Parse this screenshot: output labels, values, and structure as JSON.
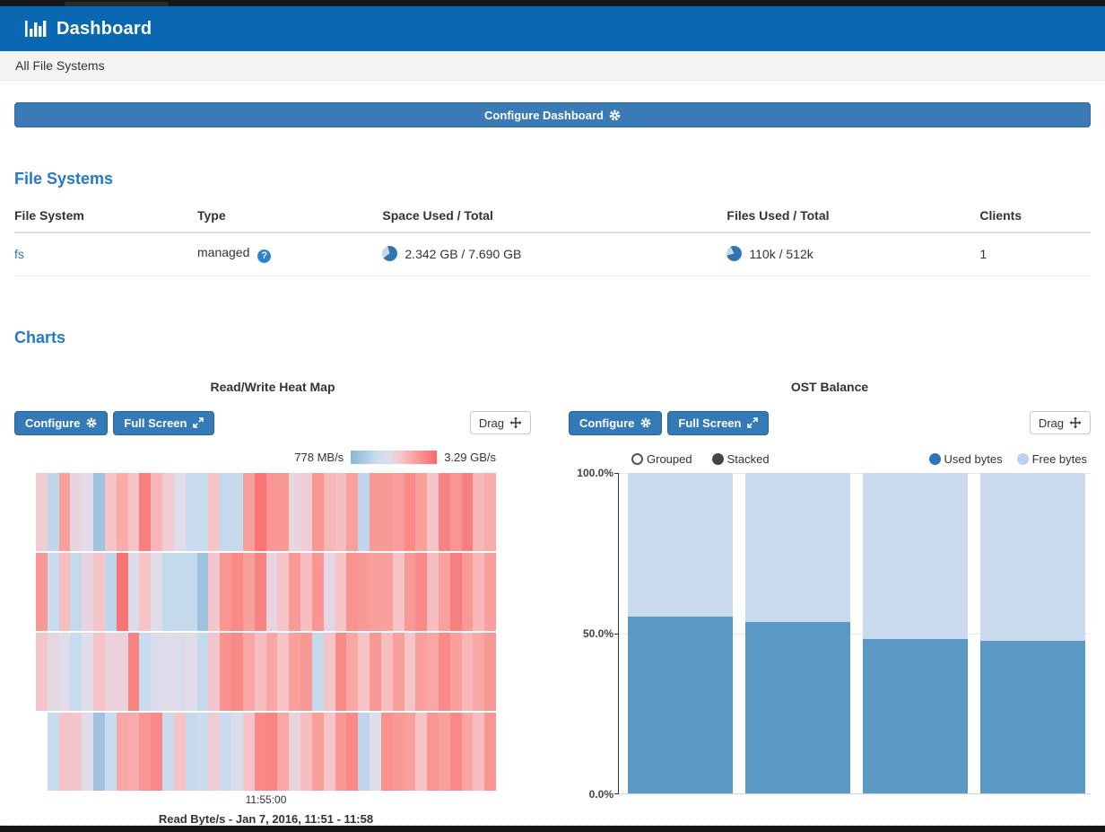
{
  "header": {
    "title": "Dashboard"
  },
  "breadcrumb": "All File Systems",
  "configure_dashboard_label": "Configure Dashboard",
  "file_systems": {
    "heading": "File Systems",
    "columns": [
      "File System",
      "Type",
      "Space Used / Total",
      "Files Used / Total",
      "Clients"
    ],
    "rows": [
      {
        "name": "fs",
        "type": "managed",
        "space": "2.342 GB / 7.690 GB",
        "files": "110k / 512k",
        "clients": "1"
      }
    ]
  },
  "charts_heading": "Charts",
  "heatmap_panel": {
    "title": "Read/Write Heat Map",
    "configure_label": "Configure",
    "fullscreen_label": "Full Screen",
    "drag_label": "Drag"
  },
  "ost_panel": {
    "title": "OST Balance",
    "configure_label": "Configure",
    "fullscreen_label": "Full Screen",
    "drag_label": "Drag",
    "grouped_label": "Grouped",
    "stacked_label": "Stacked",
    "used_label": "Used bytes",
    "free_label": "Free bytes",
    "legend_used_color": "#2b74b8",
    "legend_free_color": "#bdd2ee"
  },
  "chart_data": [
    {
      "type": "heatmap",
      "title": "Read/Write Heat Map",
      "legend_min": "778 MB/s",
      "legend_max": "3.29 GB/s",
      "x_tick": "11:55:00",
      "caption": "Read Byte/s - Jan 7, 2016, 11:51 - 11:58",
      "palette_stops": [
        [
          0.0,
          "#89b7d9"
        ],
        [
          0.3,
          "#c9dbee"
        ],
        [
          0.45,
          "#e0dcea"
        ],
        [
          0.6,
          "#f6c3c6"
        ],
        [
          0.75,
          "#f9a09c"
        ],
        [
          1.0,
          "#f8696b"
        ]
      ],
      "rows": [
        [
          0.55,
          0.25,
          0.75,
          0.5,
          0.45,
          0.1,
          0.6,
          0.7,
          0.6,
          0.9,
          0.65,
          0.55,
          0.45,
          0.3,
          0.3,
          0.6,
          0.28,
          0.28,
          0.75,
          0.95,
          0.8,
          0.78,
          0.5,
          0.55,
          0.8,
          0.65,
          0.62,
          0.75,
          0.25,
          0.78,
          0.78,
          0.76,
          0.85,
          0.75,
          0.6,
          0.88,
          0.8,
          0.9,
          0.65,
          0.7
        ],
        [
          0.78,
          0.3,
          0.62,
          0.28,
          0.5,
          0.6,
          0.25,
          0.95,
          0.42,
          0.6,
          0.45,
          0.28,
          0.28,
          0.28,
          0.1,
          0.58,
          0.8,
          0.85,
          0.75,
          0.88,
          0.5,
          0.6,
          0.78,
          0.62,
          0.8,
          0.48,
          0.6,
          0.82,
          0.78,
          0.75,
          0.75,
          0.6,
          0.78,
          0.85,
          0.62,
          0.75,
          0.9,
          0.78,
          0.65,
          0.75
        ],
        [
          0.58,
          0.48,
          0.45,
          0.3,
          0.45,
          0.6,
          0.52,
          0.52,
          0.88,
          0.3,
          0.42,
          0.45,
          0.42,
          0.45,
          0.28,
          0.58,
          0.82,
          0.85,
          0.72,
          0.62,
          0.72,
          0.6,
          0.75,
          0.78,
          0.28,
          0.6,
          0.85,
          0.72,
          0.6,
          0.78,
          0.62,
          0.75,
          0.6,
          0.75,
          0.72,
          0.85,
          0.75,
          0.65,
          0.72,
          0.78
        ],
        [
          null,
          0.3,
          0.6,
          0.58,
          0.45,
          0.1,
          0.3,
          0.72,
          0.7,
          0.8,
          0.85,
          0.3,
          0.6,
          0.28,
          0.3,
          0.55,
          0.3,
          0.4,
          0.6,
          0.85,
          0.88,
          0.72,
          0.5,
          0.62,
          0.75,
          0.6,
          0.78,
          0.85,
          0.25,
          0.45,
          0.82,
          0.78,
          0.75,
          0.6,
          0.8,
          0.75,
          0.85,
          0.72,
          0.62,
          0.8
        ]
      ]
    },
    {
      "type": "bar",
      "subtype": "stacked-percent",
      "title": "OST Balance",
      "series": [
        {
          "name": "Used bytes",
          "values": [
            55.3,
            53.5,
            48.3,
            47.6
          ],
          "color": "#5b99c5"
        },
        {
          "name": "Free bytes",
          "values": [
            44.7,
            46.5,
            51.7,
            52.4
          ],
          "color": "#c9daee"
        }
      ],
      "ylim": [
        0,
        100
      ],
      "yticks": [
        "100.0%",
        "50.0%",
        "0.0%"
      ],
      "grid": true,
      "legend_position": "top"
    }
  ]
}
